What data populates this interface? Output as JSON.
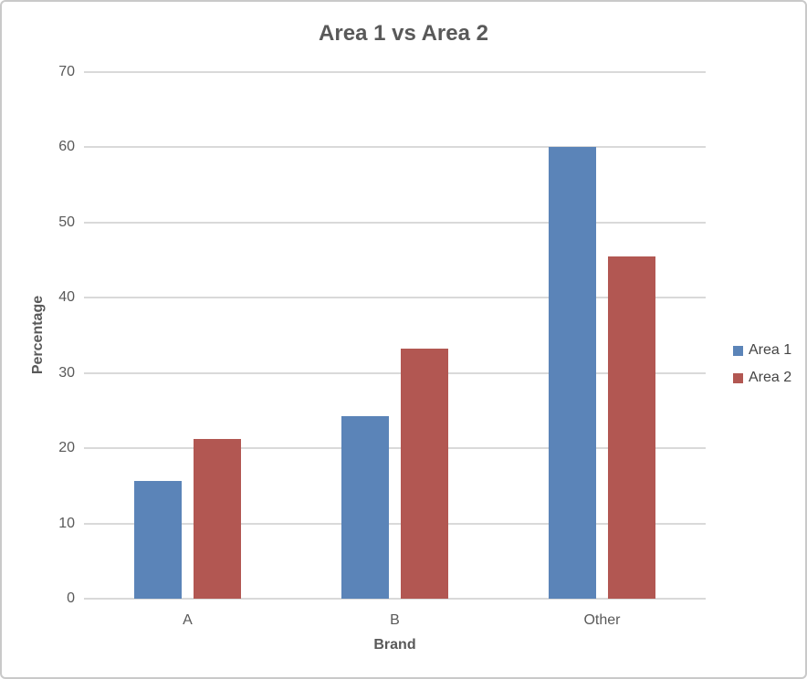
{
  "chart_data": {
    "type": "bar",
    "title": "Area 1 vs Area 2",
    "xlabel": "Brand",
    "ylabel": "Percentage",
    "categories": [
      "A",
      "B",
      "Other"
    ],
    "series": [
      {
        "name": "Area 1",
        "color": "#5b84b8",
        "values": [
          15.7,
          24.3,
          60.0
        ]
      },
      {
        "name": "Area 2",
        "color": "#b25752",
        "values": [
          21.2,
          33.3,
          45.5
        ]
      }
    ],
    "ylim": [
      0,
      70
    ],
    "yticks": [
      0,
      10,
      20,
      30,
      40,
      50,
      60,
      70
    ],
    "grid": true,
    "legend_position": "right"
  },
  "colors": {
    "grid": "#d9d9d9",
    "axis_text": "#595959",
    "legend_text": "#444444",
    "background": "#ffffff",
    "frame_border": "#c9c9c9"
  }
}
